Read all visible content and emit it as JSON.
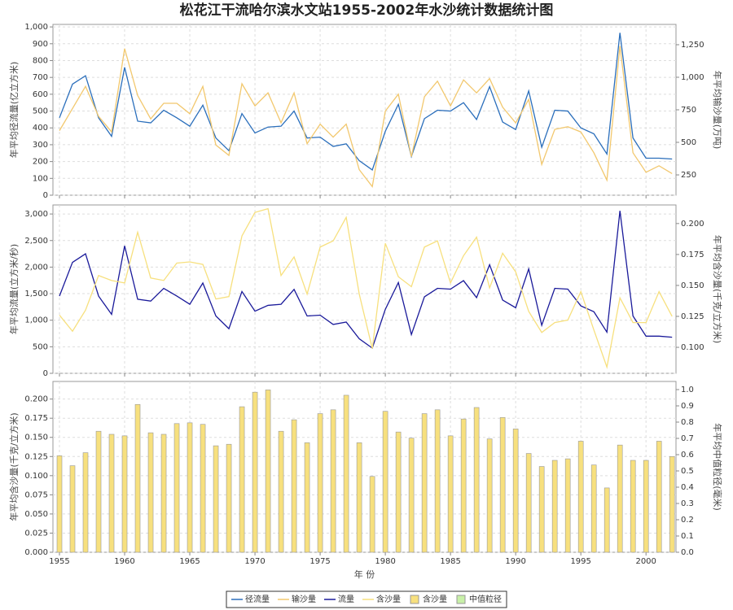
{
  "title": "松花江干流哈尔滨水文站1955-2002年水沙统计数据统计图",
  "chart_data": [
    {
      "type": "line",
      "x": [
        1955,
        1956,
        1957,
        1958,
        1959,
        1960,
        1961,
        1962,
        1963,
        1964,
        1965,
        1966,
        1967,
        1968,
        1969,
        1970,
        1971,
        1972,
        1973,
        1974,
        1975,
        1976,
        1977,
        1978,
        1979,
        1980,
        1981,
        1982,
        1983,
        1984,
        1985,
        1986,
        1987,
        1988,
        1989,
        1990,
        1991,
        1992,
        1993,
        1994,
        1995,
        1996,
        1997,
        1998,
        1999,
        2000,
        2001,
        2002
      ],
      "xlim": [
        1954.5,
        2002.3
      ],
      "xticks": [
        1955,
        1960,
        1965,
        1970,
        1975,
        1980,
        1985,
        1990,
        1995,
        2000
      ],
      "ylabel": "年平均径流量(亿立方米)",
      "y2label": "年平均输沙量(万吨)",
      "ylim": [
        0,
        1015
      ],
      "yticks": [
        0,
        100,
        200,
        300,
        400,
        500,
        600,
        700,
        800,
        900,
        {
          "value": 1000,
          "label": "1,000"
        }
      ],
      "y2lim": [
        94,
        1406
      ],
      "y2ticks": [
        250,
        500,
        750,
        {
          "value": 1000,
          "label": "1,000"
        },
        {
          "value": 1250,
          "label": "1,250"
        }
      ],
      "grid": true,
      "series": [
        {
          "name": "径流量",
          "color": "#2a6ebb",
          "values": [
            460,
            660,
            710,
            460,
            350,
            760,
            440,
            430,
            505,
            460,
            410,
            535,
            340,
            265,
            485,
            370,
            405,
            410,
            500,
            340,
            345,
            290,
            305,
            205,
            150,
            380,
            540,
            230,
            455,
            505,
            500,
            550,
            450,
            645,
            435,
            390,
            620,
            285,
            505,
            500,
            400,
            365,
            245,
            965,
            340,
            220,
            220,
            215
          ]
        },
        {
          "name": "输沙量",
          "color": "#f2c86e",
          "axis": "y2",
          "values": [
            590,
            760,
            930,
            700,
            580,
            1220,
            860,
            680,
            800,
            800,
            720,
            930,
            480,
            400,
            950,
            780,
            880,
            650,
            880,
            490,
            640,
            540,
            640,
            290,
            160,
            740,
            870,
            390,
            850,
            970,
            780,
            980,
            880,
            990,
            770,
            650,
            830,
            330,
            600,
            620,
            580,
            420,
            210,
            1240,
            420,
            270,
            320,
            260
          ]
        }
      ]
    },
    {
      "type": "line",
      "x": [
        1955,
        1956,
        1957,
        1958,
        1959,
        1960,
        1961,
        1962,
        1963,
        1964,
        1965,
        1966,
        1967,
        1968,
        1969,
        1970,
        1971,
        1972,
        1973,
        1974,
        1975,
        1976,
        1977,
        1978,
        1979,
        1980,
        1981,
        1982,
        1983,
        1984,
        1985,
        1986,
        1987,
        1988,
        1989,
        1990,
        1991,
        1992,
        1993,
        1994,
        1995,
        1996,
        1997,
        1998,
        1999,
        2000,
        2001,
        2002
      ],
      "xlim": [
        1954.5,
        2002.3
      ],
      "xticks": [
        1955,
        1960,
        1965,
        1970,
        1975,
        1980,
        1985,
        1990,
        1995,
        2000
      ],
      "ylabel": "年平均流量(立方米/秒)",
      "y2label": "年平均含沙量(千克/立方米)",
      "ylim": [
        0,
        3170
      ],
      "yticks": [
        0,
        500,
        {
          "value": 1000,
          "label": "1,000"
        },
        {
          "value": 1500,
          "label": "1,500"
        },
        {
          "value": 2000,
          "label": "2,000"
        },
        {
          "value": 2500,
          "label": "2,500"
        },
        {
          "value": 3000,
          "label": "3,000"
        }
      ],
      "y2lim": [
        0.079,
        0.215
      ],
      "y2ticks": [
        {
          "value": 0.1,
          "label": "0.100"
        },
        0.125,
        {
          "value": 0.15,
          "label": "0.150"
        },
        0.175,
        {
          "value": 0.2,
          "label": "0.200"
        }
      ],
      "grid": true,
      "series": [
        {
          "name": "流量",
          "color": "#1a1a9a",
          "values": [
            1455,
            2090,
            2250,
            1455,
            1110,
            2400,
            1395,
            1360,
            1600,
            1455,
            1300,
            1700,
            1080,
            840,
            1540,
            1170,
            1280,
            1300,
            1580,
            1080,
            1095,
            920,
            965,
            650,
            475,
            1205,
            1710,
            730,
            1440,
            1600,
            1585,
            1745,
            1425,
            2045,
            1380,
            1235,
            1965,
            905,
            1600,
            1585,
            1270,
            1160,
            775,
            3060,
            1080,
            700,
            700,
            680
          ]
        },
        {
          "name": "含沙量",
          "color": "#f7e07e",
          "axis": "y2",
          "values": [
            0.126,
            0.113,
            0.13,
            0.158,
            0.154,
            0.152,
            0.193,
            0.156,
            0.154,
            0.168,
            0.169,
            0.167,
            0.139,
            0.141,
            0.19,
            0.209,
            0.212,
            0.158,
            0.173,
            0.143,
            0.181,
            0.186,
            0.205,
            0.143,
            0.099,
            0.184,
            0.157,
            0.149,
            0.181,
            0.186,
            0.152,
            0.174,
            0.189,
            0.148,
            0.176,
            0.161,
            0.129,
            0.112,
            0.12,
            0.122,
            0.145,
            0.114,
            0.084,
            0.14,
            0.12,
            0.12,
            0.145,
            0.125
          ]
        }
      ]
    },
    {
      "type": "bar",
      "x": [
        1955,
        1956,
        1957,
        1958,
        1959,
        1960,
        1961,
        1962,
        1963,
        1964,
        1965,
        1966,
        1967,
        1968,
        1969,
        1970,
        1971,
        1972,
        1973,
        1974,
        1975,
        1976,
        1977,
        1978,
        1979,
        1980,
        1981,
        1982,
        1983,
        1984,
        1985,
        1986,
        1987,
        1988,
        1989,
        1990,
        1991,
        1992,
        1993,
        1994,
        1995,
        1996,
        1997,
        1998,
        1999,
        2000,
        2001,
        2002
      ],
      "xlim": [
        1954.5,
        2002.3
      ],
      "xticks": [
        1955,
        1960,
        1965,
        1970,
        1975,
        1980,
        1985,
        1990,
        1995,
        2000
      ],
      "xlabel": "年 份",
      "ylabel": "年平均含沙量(千克/立方米)",
      "y2label": "年平均中值粒径(毫米)",
      "ylim": [
        0,
        0.223
      ],
      "yticks": [
        {
          "value": 0,
          "label": "0.000"
        },
        0.025,
        {
          "value": 0.05,
          "label": "0.050"
        },
        0.075,
        {
          "value": 0.1,
          "label": "0.100"
        },
        0.125,
        {
          "value": 0.15,
          "label": "0.150"
        },
        0.175,
        {
          "value": 0.2,
          "label": "0.200"
        }
      ],
      "y2lim": [
        0,
        1.05
      ],
      "y2ticks": [
        {
          "value": 0,
          "label": "0.0"
        },
        0.1,
        0.2,
        0.3,
        0.4,
        0.5,
        0.6,
        0.7,
        0.8,
        0.9,
        {
          "value": 1,
          "label": "1.0"
        }
      ],
      "grid": true,
      "series": [
        {
          "name": "含沙量",
          "color": "#f7e07e",
          "values": [
            0.126,
            0.113,
            0.13,
            0.158,
            0.154,
            0.152,
            0.193,
            0.156,
            0.154,
            0.168,
            0.169,
            0.167,
            0.139,
            0.141,
            0.19,
            0.209,
            0.212,
            0.158,
            0.173,
            0.143,
            0.181,
            0.186,
            0.205,
            0.143,
            0.099,
            0.184,
            0.157,
            0.149,
            0.181,
            0.186,
            0.152,
            0.174,
            0.189,
            0.148,
            0.176,
            0.161,
            0.129,
            0.112,
            0.12,
            0.122,
            0.145,
            0.114,
            0.084,
            0.14,
            0.12,
            0.12,
            0.145,
            0.125
          ]
        },
        {
          "name": "中值粒径",
          "color": "#c8f0a8",
          "axis": "y2",
          "values": [
            null,
            null,
            null,
            null,
            null,
            null,
            null,
            null,
            null,
            null,
            null,
            null,
            null,
            null,
            null,
            null,
            null,
            null,
            null,
            null,
            null,
            null,
            null,
            null,
            null,
            null,
            null,
            null,
            null,
            null,
            null,
            null,
            null,
            null,
            null,
            null,
            null,
            null,
            null,
            null,
            null,
            null,
            null,
            null,
            null,
            null,
            null,
            null
          ]
        }
      ]
    }
  ]
}
